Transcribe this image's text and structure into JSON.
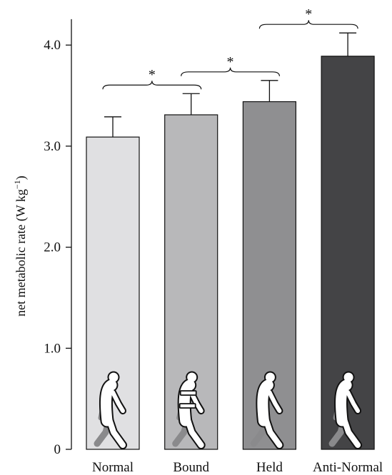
{
  "chart_data": {
    "type": "bar",
    "ylabel": "net metabolic rate (W kg",
    "ylabel_sup": "−1",
    "ylabel_close": ")",
    "ylim": [
      0,
      4.2
    ],
    "yticks": [
      {
        "value": 0,
        "label": "0"
      },
      {
        "value": 1,
        "label": "1.0"
      },
      {
        "value": 2,
        "label": "2.0"
      },
      {
        "value": 3,
        "label": "3.0"
      },
      {
        "value": 4,
        "label": "4.0"
      }
    ],
    "categories": [
      "Normal",
      "Bound",
      "Held",
      "Anti-Normal"
    ],
    "values": [
      3.09,
      3.31,
      3.44,
      3.89
    ],
    "errors": [
      0.2,
      0.21,
      0.21,
      0.23
    ],
    "bar_colors": [
      "#e0e0e2",
      "#b8b8ba",
      "#8f8f91",
      "#444446"
    ],
    "icons": [
      "walker-normal-icon",
      "walker-bound-icon",
      "walker-held-icon",
      "walker-anti-normal-icon"
    ],
    "significance": [
      {
        "from": 0,
        "to": 1,
        "label": "*"
      },
      {
        "from": 1,
        "to": 2,
        "label": "*"
      },
      {
        "from": 2,
        "to": 3,
        "label": "*"
      }
    ]
  }
}
